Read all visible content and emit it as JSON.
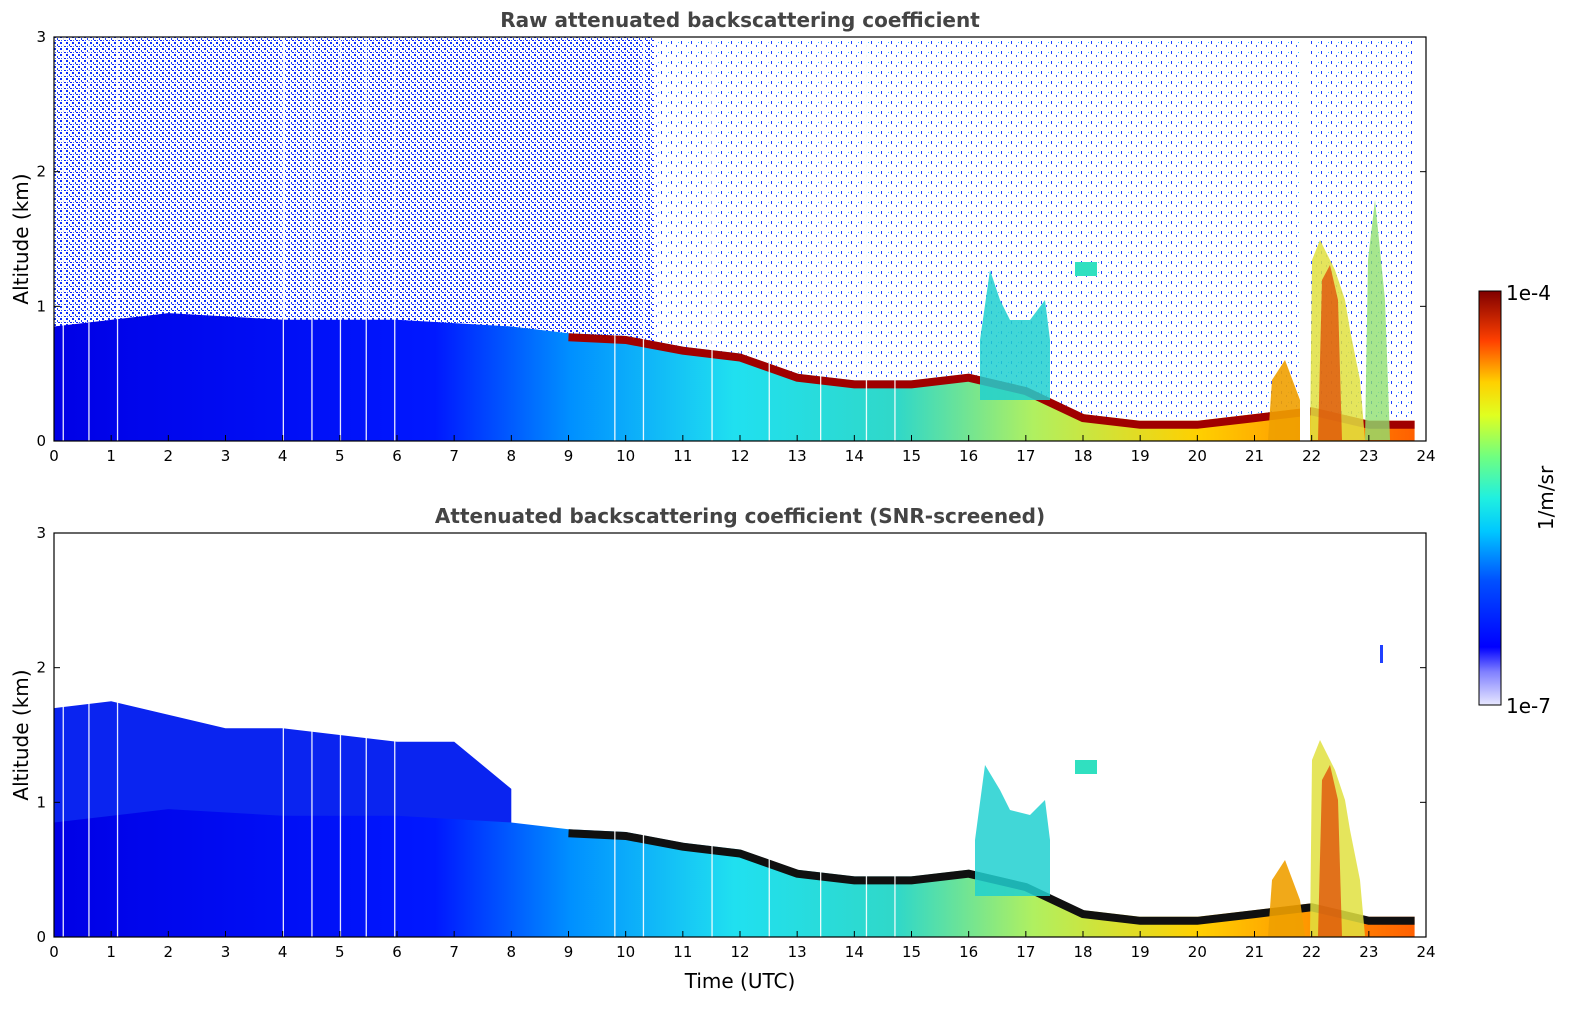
{
  "chart_data": [
    {
      "type": "heatmap",
      "title": "Raw attenuated backscattering coefficient",
      "xlabel": "",
      "ylabel": "Altitude (km)",
      "xlim": [
        0,
        24
      ],
      "ylim": [
        0,
        3
      ],
      "xticks": [
        "0",
        "1",
        "2",
        "3",
        "4",
        "5",
        "6",
        "7",
        "8",
        "9",
        "10",
        "11",
        "12",
        "13",
        "14",
        "15",
        "16",
        "17",
        "18",
        "19",
        "20",
        "21",
        "22",
        "23",
        "24"
      ],
      "yticks": [
        "0",
        "1",
        "2",
        "3"
      ],
      "layer_top_km_by_hour": [
        [
          0,
          0.85
        ],
        [
          2,
          0.95
        ],
        [
          4,
          0.9
        ],
        [
          6,
          0.9
        ],
        [
          8,
          0.85
        ],
        [
          9,
          0.8
        ],
        [
          10,
          0.78
        ],
        [
          11,
          0.7
        ],
        [
          12,
          0.65
        ],
        [
          13,
          0.5
        ],
        [
          14,
          0.45
        ],
        [
          15,
          0.45
        ],
        [
          16,
          0.5
        ],
        [
          17,
          0.4
        ],
        [
          18,
          0.2
        ],
        [
          19,
          0.15
        ],
        [
          20,
          0.15
        ],
        [
          21,
          0.2
        ],
        [
          22,
          0.25
        ],
        [
          23,
          0.15
        ],
        [
          23.8,
          0.15
        ]
      ]
    },
    {
      "type": "heatmap",
      "title": "Attenuated backscattering coefficient (SNR-screened)",
      "xlabel": "Time (UTC)",
      "ylabel": "Altitude (km)",
      "xlim": [
        0,
        24
      ],
      "ylim": [
        0,
        3
      ],
      "xticks": [
        "0",
        "1",
        "2",
        "3",
        "4",
        "5",
        "6",
        "7",
        "8",
        "9",
        "10",
        "11",
        "12",
        "13",
        "14",
        "15",
        "16",
        "17",
        "18",
        "19",
        "20",
        "21",
        "22",
        "23",
        "24"
      ],
      "yticks": [
        "0",
        "1",
        "2",
        "3"
      ]
    }
  ],
  "colorbar": {
    "label": "1/m/sr",
    "max_label": "1e-4",
    "min_label": "1e-7",
    "scale": "log",
    "colormap": "jet",
    "colors": [
      "#e8e8ff",
      "#0000ff",
      "#00ffff",
      "#ffff00",
      "#ff0000",
      "#800000"
    ]
  }
}
